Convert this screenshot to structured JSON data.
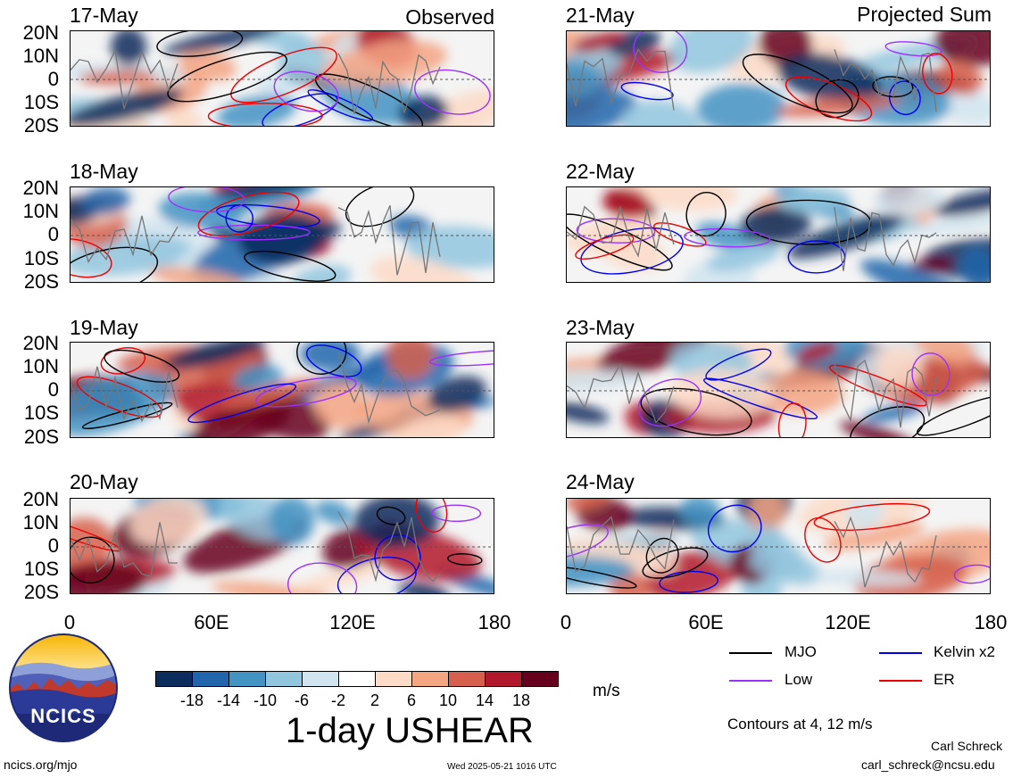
{
  "headers": {
    "left": "Observed",
    "right": "Projected Sum"
  },
  "panels_left": [
    {
      "date": "17-May"
    },
    {
      "date": "18-May"
    },
    {
      "date": "19-May"
    },
    {
      "date": "20-May"
    }
  ],
  "panels_right": [
    {
      "date": "21-May"
    },
    {
      "date": "22-May"
    },
    {
      "date": "23-May"
    },
    {
      "date": "24-May"
    }
  ],
  "lat_ticks": [
    "20N",
    "10N",
    "0",
    "10S",
    "20S"
  ],
  "lon_ticks": [
    "0",
    "60E",
    "120E",
    "180"
  ],
  "colorbar": {
    "colors": [
      "#0b2c5c",
      "#2166ac",
      "#4393c3",
      "#92c5de",
      "#d1e5f0",
      "#ffffff",
      "#fddbc7",
      "#f4a582",
      "#d6604d",
      "#b2182b",
      "#67001f"
    ],
    "labels": [
      "-18",
      "-14",
      "-10",
      "-6",
      "-2",
      "2",
      "6",
      "10",
      "14",
      "18"
    ],
    "units": "m/s",
    "title": "1-day USHEAR"
  },
  "legend": {
    "items": [
      {
        "label": "MJO",
        "color": "#000000"
      },
      {
        "label": "Kelvin x2",
        "color": "#0000ee"
      },
      {
        "label": "Low",
        "color": "#9b30ff"
      },
      {
        "label": "ER",
        "color": "#ee0000"
      }
    ],
    "contours_note": "Contours at 4, 12 m/s"
  },
  "logo": {
    "text": "NCICS"
  },
  "footer": {
    "url": "ncics.org/mjo",
    "timestamp": "Wed 2025-05-21 1016 UTC",
    "author": "Carl Schreck",
    "email": "carl_schreck@ncsu.edu"
  }
}
